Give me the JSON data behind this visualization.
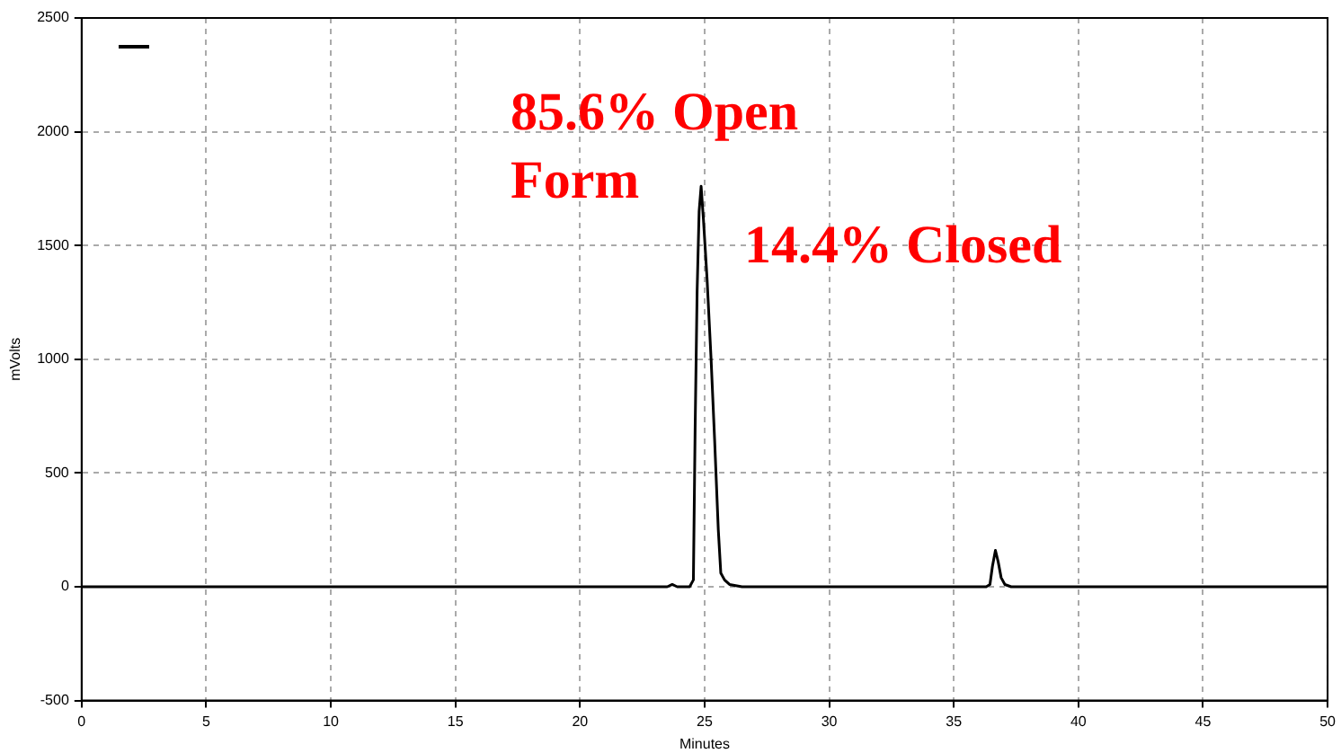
{
  "chart_data": {
    "type": "line",
    "xlabel": "Minutes",
    "ylabel": "mVolts",
    "annotations": [
      "85.6% Open Form",
      "14.4% Closed"
    ],
    "xlim": [
      0,
      50
    ],
    "xticks": [
      0,
      5,
      10,
      15,
      20,
      25,
      30,
      35,
      40,
      45,
      50
    ],
    "ylim": [
      -500,
      2500
    ],
    "yticks": [
      -500,
      0,
      500,
      1000,
      1500,
      2000,
      2500
    ],
    "grid": true,
    "marker": "none",
    "line_style": "solid",
    "series": [
      {
        "color": "#000000",
        "x": [
          0,
          10,
          20,
          23.5,
          23.7,
          23.9,
          24.4,
          24.55,
          24.62,
          24.7,
          24.78,
          24.86,
          24.95,
          25.1,
          25.26,
          25.4,
          25.55,
          25.65,
          25.8,
          26.0,
          26.5,
          30,
          36.3,
          36.45,
          36.55,
          36.67,
          36.78,
          36.9,
          37.05,
          37.3,
          37.6,
          45,
          50
        ],
        "values": [
          0,
          0,
          0,
          0,
          10,
          0,
          0,
          30,
          700,
          1300,
          1650,
          1760,
          1620,
          1350,
          1000,
          650,
          250,
          60,
          30,
          10,
          0,
          0,
          0,
          10,
          90,
          160,
          110,
          40,
          10,
          0,
          0,
          0,
          0
        ]
      }
    ]
  }
}
